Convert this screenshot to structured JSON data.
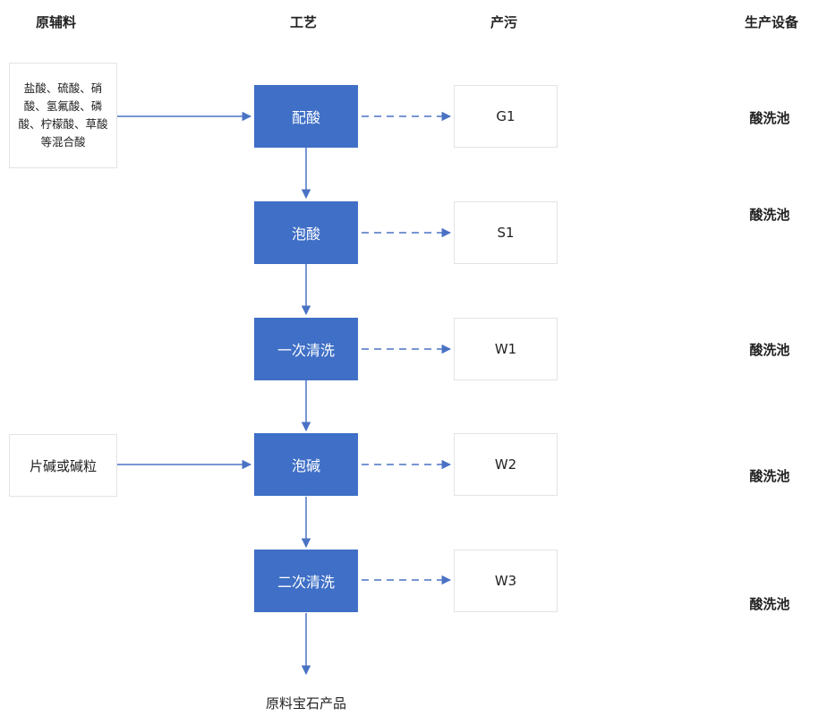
{
  "headers": {
    "materials": "原辅料",
    "process": "工艺",
    "pollution": "产污",
    "equipment": "生产设备"
  },
  "materials": [
    {
      "text": "盐酸、硫酸、硝酸、氢氟酸、磷酸、柠檬酸、草酸等混合酸"
    },
    {
      "text": "片碱或碱粒"
    }
  ],
  "steps": [
    {
      "label": "配酸",
      "pollutant": "G1",
      "equipment": "酸洗池"
    },
    {
      "label": "泡酸",
      "pollutant": "S1",
      "equipment": "酸洗池"
    },
    {
      "label": "一次清洗",
      "pollutant": "W1",
      "equipment": "酸洗池"
    },
    {
      "label": "泡碱",
      "pollutant": "W2",
      "equipment": "酸洗池"
    },
    {
      "label": "二次清洗",
      "pollutant": "W3",
      "equipment": "酸洗池"
    }
  ],
  "final_product": "原料宝石产品",
  "colors": {
    "process_box": "#3f6fc6",
    "arrow": "#4a72c4"
  }
}
